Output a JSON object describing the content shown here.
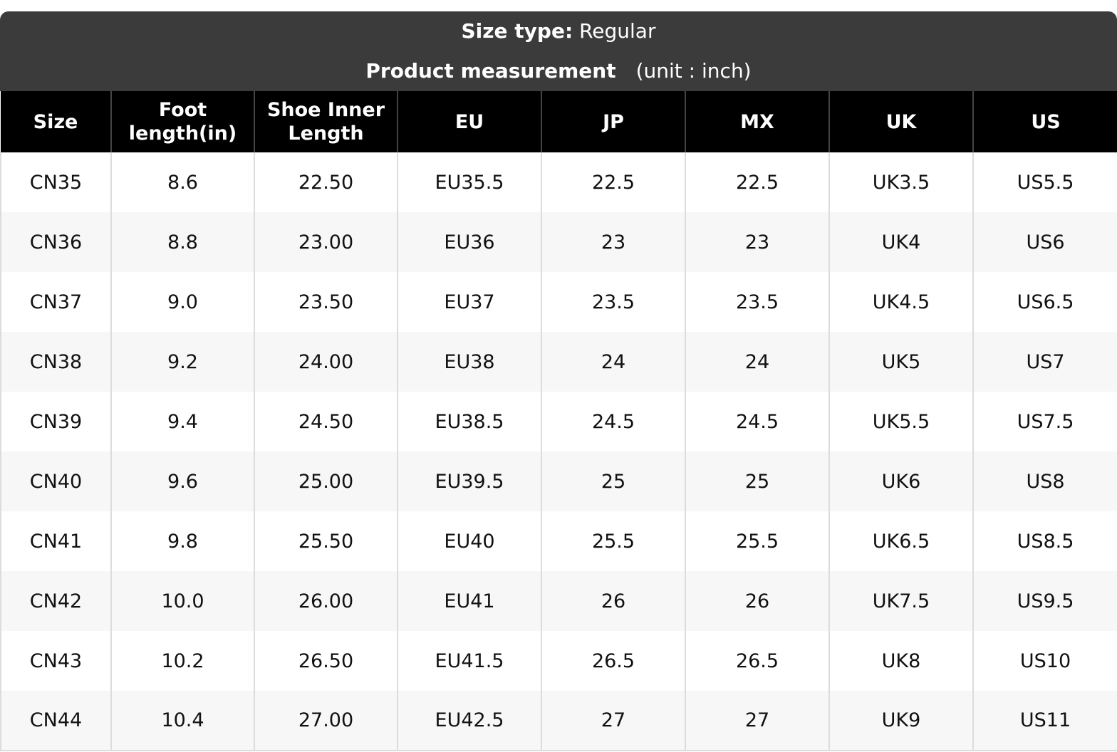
{
  "header": {
    "size_type_label": "Size type:",
    "size_type_value": "Regular",
    "measurement_label": "Product measurement",
    "unit_text": "(unit : inch)"
  },
  "table": {
    "columns": [
      "Size",
      "Foot length(in)",
      "Shoe Inner Length",
      "EU",
      "JP",
      "MX",
      "UK",
      "US"
    ],
    "rows": [
      [
        "CN35",
        "8.6",
        "22.50",
        "EU35.5",
        "22.5",
        "22.5",
        "UK3.5",
        "US5.5"
      ],
      [
        "CN36",
        "8.8",
        "23.00",
        "EU36",
        "23",
        "23",
        "UK4",
        "US6"
      ],
      [
        "CN37",
        "9.0",
        "23.50",
        "EU37",
        "23.5",
        "23.5",
        "UK4.5",
        "US6.5"
      ],
      [
        "CN38",
        "9.2",
        "24.00",
        "EU38",
        "24",
        "24",
        "UK5",
        "US7"
      ],
      [
        "CN39",
        "9.4",
        "24.50",
        "EU38.5",
        "24.5",
        "24.5",
        "UK5.5",
        "US7.5"
      ],
      [
        "CN40",
        "9.6",
        "25.00",
        "EU39.5",
        "25",
        "25",
        "UK6",
        "US8"
      ],
      [
        "CN41",
        "9.8",
        "25.50",
        "EU40",
        "25.5",
        "25.5",
        "UK6.5",
        "US8.5"
      ],
      [
        "CN42",
        "10.0",
        "26.00",
        "EU41",
        "26",
        "26",
        "UK7.5",
        "US9.5"
      ],
      [
        "CN43",
        "10.2",
        "26.50",
        "EU41.5",
        "26.5",
        "26.5",
        "UK8",
        "US10"
      ],
      [
        "CN44",
        "10.4",
        "27.00",
        "EU42.5",
        "27",
        "27",
        "UK9",
        "US11"
      ]
    ]
  },
  "colors": {
    "header_bg": "#3b3b3b",
    "column_header_bg": "#000000",
    "row_alt_bg": "#f7f7f7",
    "grid_line": "#dcdcdc"
  }
}
